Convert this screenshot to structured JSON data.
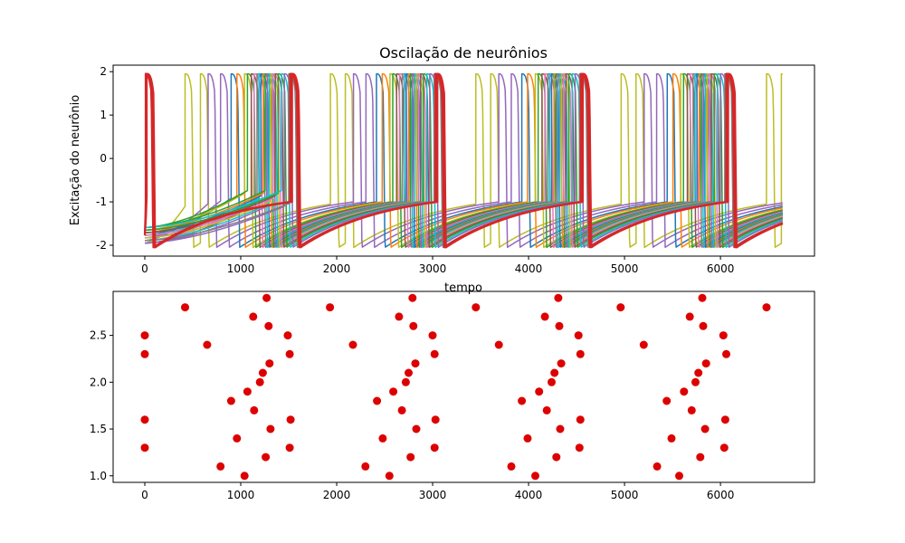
{
  "chart_data": [
    {
      "type": "line",
      "title": "Oscilação de neurônios",
      "xlabel": "tempo",
      "ylabel": "Excitação do neurônio",
      "xlim": [
        -330,
        6980
      ],
      "ylim": [
        -2.25,
        2.15
      ],
      "xticks": [
        0,
        1000,
        2000,
        3000,
        4000,
        5000,
        6000
      ],
      "yticks": [
        -2,
        -1,
        0,
        1,
        2
      ],
      "grid": false,
      "legend": "none",
      "period": 1515,
      "t_end": 6650,
      "v_max": 1.95,
      "v_min": -2.05,
      "series": [
        {
          "color": "#bcbd22",
          "spike_times": [
            420,
            580,
            1935,
            2090,
            3450,
            3605,
            4965,
            5120,
            6480,
            6635
          ]
        },
        {
          "color": "#9467bd",
          "spike_times": [
            660,
            2175,
            3690,
            5205
          ]
        },
        {
          "color": "#9467bd",
          "spike_times": [
            790,
            2305,
            3820,
            5335
          ]
        },
        {
          "color": "#1f77b4",
          "spike_times": [
            900,
            2415,
            3930,
            5445
          ]
        },
        {
          "color": "#ff7f0e",
          "spike_times": [
            960,
            2475,
            3990,
            5505
          ]
        },
        {
          "color": "#bcbd22",
          "spike_times": [
            1040,
            2555,
            4070,
            5585
          ]
        },
        {
          "color": "#2ca02c",
          "spike_times": [
            1070,
            2585,
            4100,
            5615
          ]
        },
        {
          "color": "#8c564b",
          "spike_times": [
            1110,
            2625,
            4140,
            5655
          ]
        },
        {
          "color": "#e377c2",
          "spike_times": [
            1140,
            2655,
            4170,
            5685
          ]
        },
        {
          "color": "#7f7f7f",
          "spike_times": [
            1170,
            2685,
            4200,
            5715
          ]
        },
        {
          "color": "#17becf",
          "spike_times": [
            1190,
            2705,
            4220,
            5735
          ]
        },
        {
          "color": "#1f77b4",
          "spike_times": [
            1210,
            2725,
            4240,
            5755
          ]
        },
        {
          "color": "#ff7f0e",
          "spike_times": [
            1235,
            2750,
            4265,
            5780
          ]
        },
        {
          "color": "#2ca02c",
          "spike_times": [
            1255,
            2770,
            4285,
            5800
          ]
        },
        {
          "color": "#9467bd",
          "spike_times": [
            1275,
            2790,
            4305,
            5820
          ]
        },
        {
          "color": "#17becf",
          "spike_times": [
            1295,
            2810,
            4325,
            5840
          ]
        },
        {
          "color": "#bcbd22",
          "spike_times": [
            1315,
            2830,
            4345,
            5860
          ]
        },
        {
          "color": "#e377c2",
          "spike_times": [
            1335,
            2850,
            4365,
            5880
          ]
        },
        {
          "color": "#8c564b",
          "spike_times": [
            1360,
            2875,
            4390,
            5905
          ]
        },
        {
          "color": "#2ca02c",
          "spike_times": [
            1390,
            2905,
            4420,
            5935
          ]
        },
        {
          "color": "#17becf",
          "spike_times": [
            1425,
            2940,
            4455,
            5970
          ]
        },
        {
          "color": "#9467bd",
          "spike_times": [
            1455,
            2970,
            4485,
            6000
          ]
        },
        {
          "color": "#7f7f7f",
          "spike_times": [
            1500,
            3015,
            4530,
            6045
          ]
        },
        {
          "color": "#d62728",
          "spike_times": [
            0,
            1515,
            3030,
            4545,
            6060
          ]
        },
        {
          "color": "#d62728",
          "spike_times": [
            10,
            1525,
            3040,
            4555,
            6070
          ]
        },
        {
          "color": "#d62728",
          "spike_times": [
            20,
            1535,
            3050,
            4565,
            6080
          ]
        }
      ]
    },
    {
      "type": "scatter",
      "title": "",
      "xlabel": "",
      "ylabel": "",
      "xlim": [
        -330,
        6980
      ],
      "ylim": [
        0.93,
        2.97
      ],
      "xticks": [
        0,
        1000,
        2000,
        3000,
        4000,
        5000,
        6000
      ],
      "yticks": [
        1.0,
        1.5,
        2.0,
        2.5
      ],
      "ytick_labels": [
        "1.0",
        "1.5",
        "2.0",
        "2.5"
      ],
      "grid": false,
      "legend": "none",
      "marker_color": "#dd0000",
      "points": [
        [
          0,
          2.5
        ],
        [
          0,
          2.3
        ],
        [
          0,
          1.6
        ],
        [
          0,
          1.3
        ],
        [
          420,
          2.8
        ],
        [
          650,
          2.4
        ],
        [
          790,
          1.1
        ],
        [
          900,
          1.8
        ],
        [
          960,
          1.4
        ],
        [
          1040,
          1.0
        ],
        [
          1070,
          1.9
        ],
        [
          1130,
          2.7
        ],
        [
          1140,
          1.7
        ],
        [
          1200,
          2.0
        ],
        [
          1230,
          2.1
        ],
        [
          1260,
          1.2
        ],
        [
          1270,
          2.9
        ],
        [
          1290,
          2.6
        ],
        [
          1300,
          2.2
        ],
        [
          1310,
          1.5
        ],
        [
          1490,
          2.5
        ],
        [
          1510,
          2.3
        ],
        [
          1520,
          1.6
        ],
        [
          1510,
          1.3
        ],
        [
          1930,
          2.8
        ],
        [
          2170,
          2.4
        ],
        [
          2300,
          1.1
        ],
        [
          2420,
          1.8
        ],
        [
          2480,
          1.4
        ],
        [
          2550,
          1.0
        ],
        [
          2590,
          1.9
        ],
        [
          2650,
          2.7
        ],
        [
          2680,
          1.7
        ],
        [
          2720,
          2.0
        ],
        [
          2750,
          2.1
        ],
        [
          2770,
          1.2
        ],
        [
          2790,
          2.9
        ],
        [
          2800,
          2.6
        ],
        [
          2820,
          2.2
        ],
        [
          2830,
          1.5
        ],
        [
          3000,
          2.5
        ],
        [
          3020,
          2.3
        ],
        [
          3030,
          1.6
        ],
        [
          3020,
          1.3
        ],
        [
          3450,
          2.8
        ],
        [
          3690,
          2.4
        ],
        [
          3820,
          1.1
        ],
        [
          3930,
          1.8
        ],
        [
          3990,
          1.4
        ],
        [
          4070,
          1.0
        ],
        [
          4110,
          1.9
        ],
        [
          4170,
          2.7
        ],
        [
          4190,
          1.7
        ],
        [
          4240,
          2.0
        ],
        [
          4270,
          2.1
        ],
        [
          4290,
          1.2
        ],
        [
          4310,
          2.9
        ],
        [
          4320,
          2.6
        ],
        [
          4340,
          2.2
        ],
        [
          4330,
          1.5
        ],
        [
          4520,
          2.5
        ],
        [
          4540,
          2.3
        ],
        [
          4540,
          1.6
        ],
        [
          4530,
          1.3
        ],
        [
          4960,
          2.8
        ],
        [
          5200,
          2.4
        ],
        [
          5340,
          1.1
        ],
        [
          5440,
          1.8
        ],
        [
          5490,
          1.4
        ],
        [
          5570,
          1.0
        ],
        [
          5620,
          1.9
        ],
        [
          5680,
          2.7
        ],
        [
          5700,
          1.7
        ],
        [
          5740,
          2.0
        ],
        [
          5770,
          2.1
        ],
        [
          5790,
          1.2
        ],
        [
          5810,
          2.9
        ],
        [
          5820,
          2.6
        ],
        [
          5850,
          2.2
        ],
        [
          5840,
          1.5
        ],
        [
          6030,
          2.5
        ],
        [
          6060,
          2.3
        ],
        [
          6050,
          1.6
        ],
        [
          6040,
          1.3
        ],
        [
          6480,
          2.8
        ]
      ]
    }
  ]
}
